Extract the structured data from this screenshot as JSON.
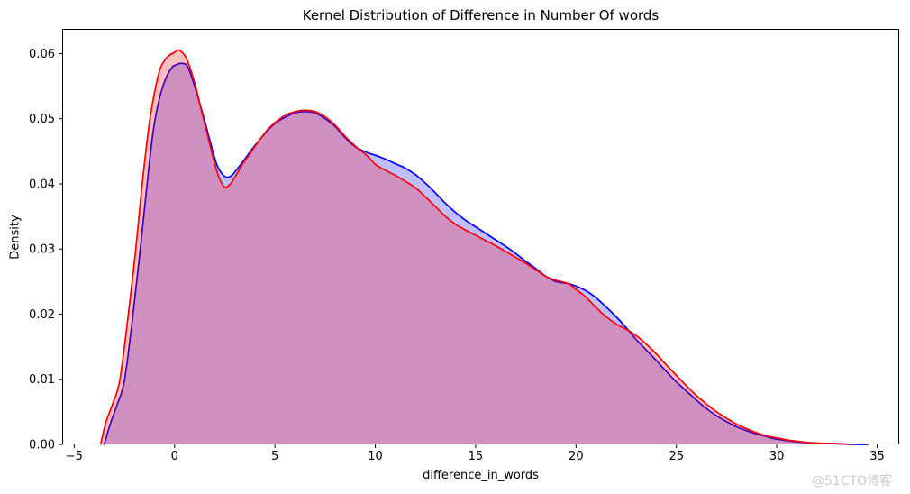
{
  "figure": {
    "background": "#ffffff",
    "watermark": "@51CTO博客",
    "watermark_color": "#cbcbcb"
  },
  "chart_data": {
    "type": "area",
    "subtype": "kde",
    "title": "Kernel Distribution of Difference in Number Of words",
    "xlabel": "difference_in_words",
    "ylabel": "Density",
    "xlim": [
      -5.6,
      36.1
    ],
    "ylim": [
      0,
      0.0638
    ],
    "xticks": [
      -5,
      0,
      5,
      10,
      15,
      20,
      25,
      30,
      35
    ],
    "xticklabels": [
      "−5",
      "0",
      "5",
      "10",
      "15",
      "20",
      "25",
      "30",
      "35"
    ],
    "yticks": [
      0,
      0.01,
      0.02,
      0.03,
      0.04,
      0.05,
      0.06
    ],
    "yticklabels": [
      "0.00",
      "0.01",
      "0.02",
      "0.03",
      "0.04",
      "0.05",
      "0.06"
    ],
    "grid": false,
    "legend": "none",
    "axis_color": "#000000",
    "series": [
      {
        "name": "blue_kde",
        "line_color": "#0000ff",
        "fill_color": "#0000ff",
        "fill_opacity": 0.25,
        "line_width": 1.7,
        "x": [
          -3.52,
          -3.46,
          -3.2,
          -2.85,
          -2.5,
          -2.1,
          -1.75,
          -1.42,
          -1.08,
          -0.8,
          -0.5,
          -0.15,
          0.1,
          0.35,
          0.65,
          1.0,
          1.4,
          1.8,
          2.1,
          2.35,
          2.6,
          2.85,
          3.1,
          3.5,
          3.9,
          4.3,
          4.7,
          5.1,
          5.5,
          6.0,
          6.5,
          7.0,
          7.5,
          8.0,
          8.5,
          9.0,
          9.6,
          10.0,
          10.5,
          11.0,
          11.5,
          12.0,
          12.5,
          13.0,
          13.5,
          14.0,
          14.5,
          15.0,
          15.5,
          16.0,
          16.5,
          17.0,
          17.5,
          18.0,
          18.5,
          19.0,
          19.6,
          20.0,
          20.5,
          21.0,
          21.5,
          22.0,
          22.65,
          23.0,
          23.5,
          24.0,
          24.5,
          25.0,
          25.5,
          26.0,
          26.5,
          27.0,
          27.5,
          28.0,
          28.5,
          29.0,
          29.5,
          30.0,
          31.0,
          32.0,
          33.0,
          33.7,
          34.55
        ],
        "y": [
          0,
          0.0005,
          0.0032,
          0.0062,
          0.0098,
          0.0192,
          0.0288,
          0.0385,
          0.0478,
          0.0525,
          0.0557,
          0.0578,
          0.0583,
          0.0585,
          0.058,
          0.055,
          0.0508,
          0.0462,
          0.043,
          0.0416,
          0.041,
          0.0413,
          0.0422,
          0.0438,
          0.0455,
          0.047,
          0.0484,
          0.0495,
          0.0502,
          0.0509,
          0.0511,
          0.0509,
          0.05,
          0.0488,
          0.0471,
          0.0457,
          0.0448,
          0.0444,
          0.0438,
          0.0431,
          0.0424,
          0.0414,
          0.0401,
          0.0386,
          0.037,
          0.0356,
          0.0344,
          0.0334,
          0.0324,
          0.0314,
          0.0304,
          0.0293,
          0.0281,
          0.027,
          0.0258,
          0.025,
          0.0247,
          0.0243,
          0.0236,
          0.0225,
          0.0211,
          0.0196,
          0.0174,
          0.0161,
          0.0145,
          0.0129,
          0.0112,
          0.0096,
          0.0082,
          0.0068,
          0.0055,
          0.0044,
          0.0035,
          0.0027,
          0.0021,
          0.0016,
          0.0012,
          0.0008,
          0.0004,
          0.0002,
          0.0001,
          0.0,
          0.0
        ]
      },
      {
        "name": "red_kde",
        "line_color": "#ff0000",
        "fill_color": "#ff0000",
        "fill_opacity": 0.25,
        "line_width": 1.7,
        "x": [
          -3.68,
          -3.64,
          -3.4,
          -3.05,
          -2.72,
          -2.31,
          -1.95,
          -1.64,
          -1.28,
          -1.0,
          -0.7,
          -0.35,
          0.0,
          0.25,
          0.6,
          1.0,
          1.4,
          1.8,
          2.1,
          2.45,
          2.75,
          3.0,
          3.4,
          3.75,
          4.2,
          4.6,
          5.0,
          5.5,
          6.0,
          6.5,
          7.0,
          7.5,
          8.0,
          8.5,
          9.0,
          9.6,
          10.0,
          10.5,
          11.0,
          11.5,
          12.0,
          12.5,
          13.0,
          13.5,
          14.0,
          14.5,
          15.0,
          15.5,
          16.0,
          16.5,
          17.0,
          17.5,
          18.0,
          18.5,
          19.0,
          19.6,
          20.0,
          20.5,
          21.0,
          21.5,
          22.0,
          22.65,
          23.0,
          23.5,
          24.0,
          24.5,
          25.0,
          25.5,
          26.0,
          26.5,
          27.0,
          27.5,
          28.0,
          28.5,
          29.0,
          29.5,
          30.0,
          30.5,
          31.0,
          31.5,
          32.0,
          33.0,
          33.8
        ],
        "y": [
          0,
          0.0006,
          0.0036,
          0.0065,
          0.01,
          0.0198,
          0.0295,
          0.0392,
          0.0488,
          0.054,
          0.0578,
          0.0595,
          0.0602,
          0.0605,
          0.0592,
          0.0555,
          0.0505,
          0.0455,
          0.042,
          0.0396,
          0.0399,
          0.041,
          0.0431,
          0.0446,
          0.0466,
          0.0482,
          0.0494,
          0.0505,
          0.0511,
          0.0513,
          0.0511,
          0.0503,
          0.049,
          0.0473,
          0.0458,
          0.0443,
          0.043,
          0.0421,
          0.0413,
          0.0404,
          0.0394,
          0.038,
          0.0365,
          0.035,
          0.0338,
          0.0329,
          0.0321,
          0.0313,
          0.0305,
          0.0296,
          0.0287,
          0.0278,
          0.0268,
          0.0258,
          0.0252,
          0.0247,
          0.0238,
          0.0226,
          0.021,
          0.0196,
          0.0185,
          0.0174,
          0.0167,
          0.0154,
          0.0139,
          0.0122,
          0.0106,
          0.009,
          0.0075,
          0.0062,
          0.005,
          0.004,
          0.0031,
          0.0024,
          0.0018,
          0.0013,
          0.001,
          0.0007,
          0.0005,
          0.0003,
          0.0002,
          0.0001,
          0.0
        ]
      }
    ]
  }
}
